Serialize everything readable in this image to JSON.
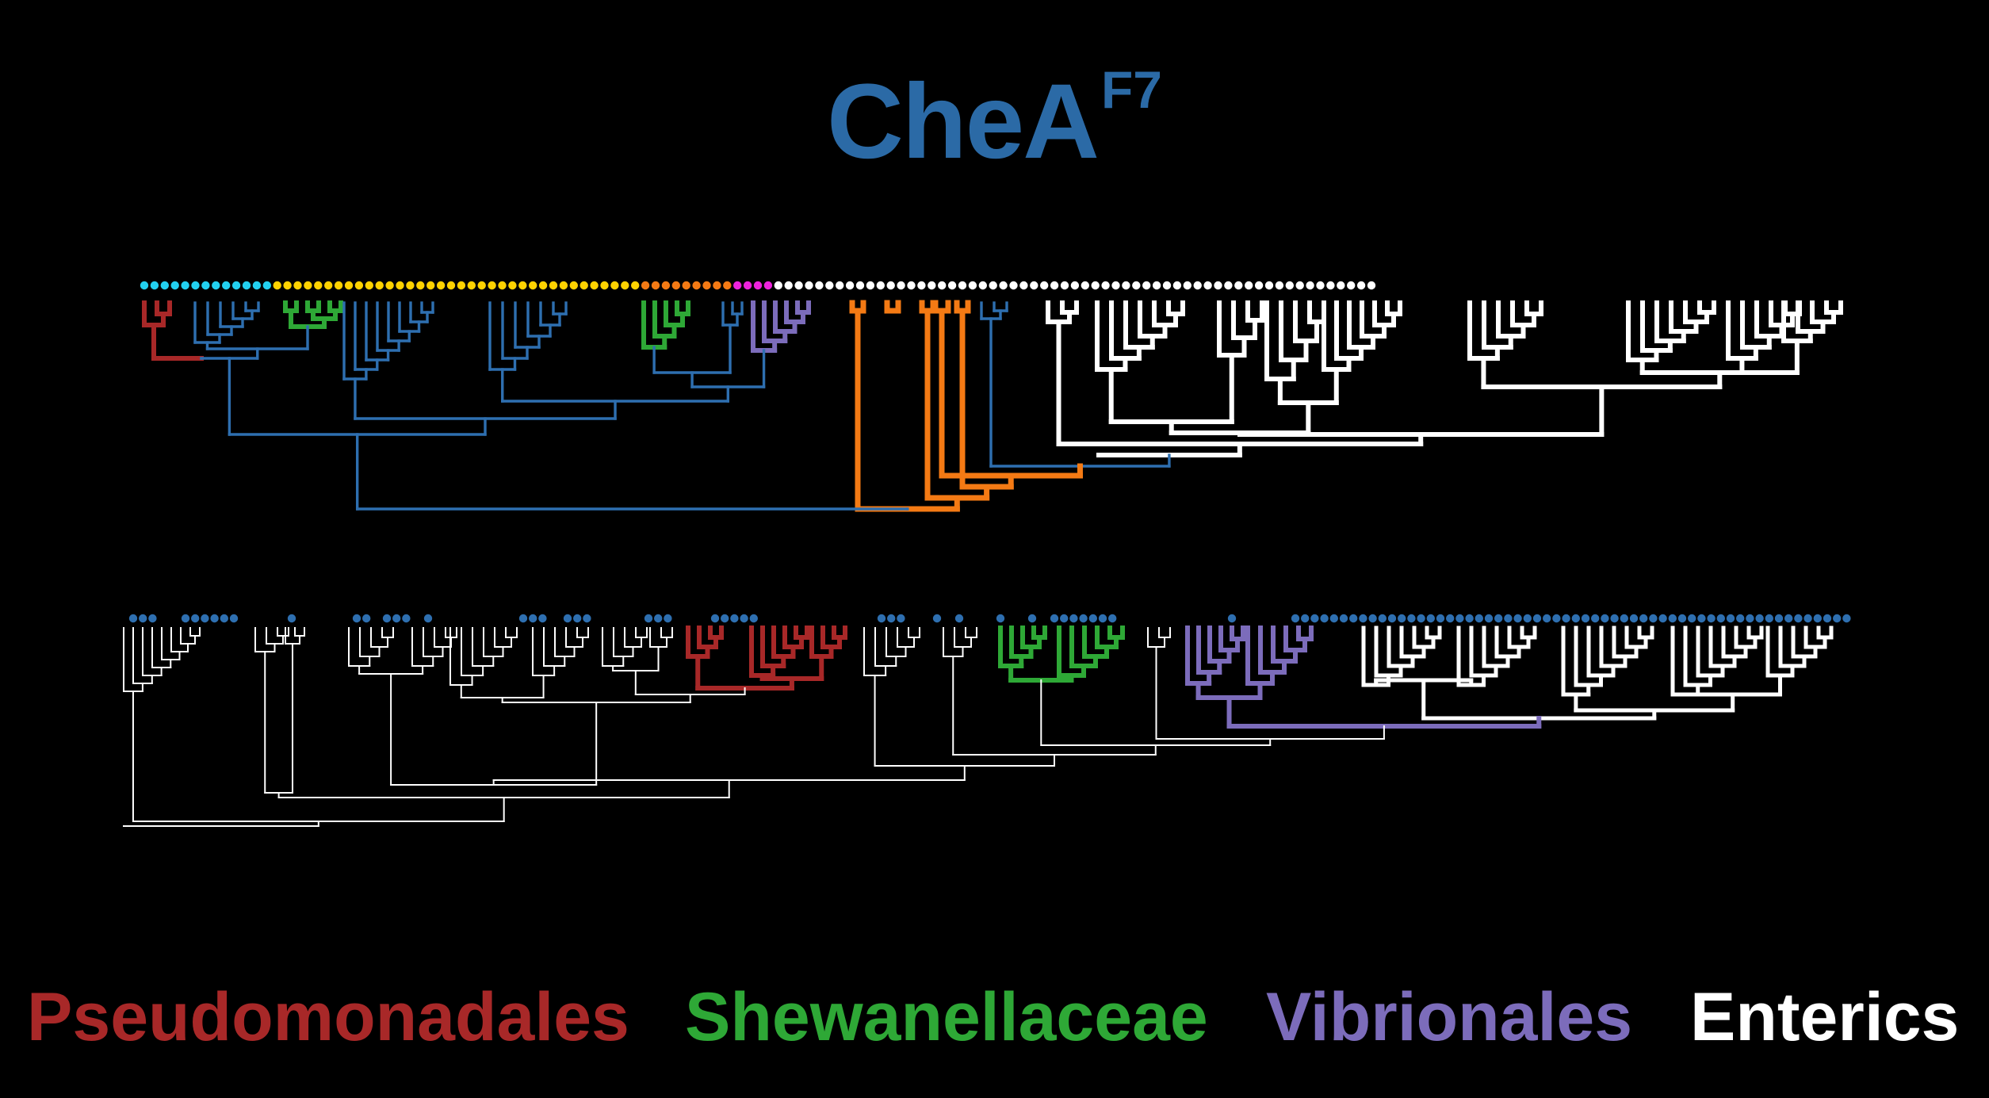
{
  "title": {
    "main": "CheA",
    "superscript": "F7"
  },
  "colors": {
    "background": "#000000",
    "title": "#2b6aa6",
    "other": "#2e6fb0",
    "pseudomonadales": "#a82828",
    "shewanellaceae": "#2ea836",
    "vibrionales": "#7c6cbb",
    "enterics": "#ffffff",
    "orange": "#f47a14",
    "cyan_tip": "#22d0f0",
    "yellow_tip": "#ffd200",
    "magenta_tip": "#ee22dd",
    "blue_tip": "#2e6fb0"
  },
  "trees": [
    {
      "name": "upper-tree",
      "tip_marker_groups": [
        {
          "color": "cyan_tip",
          "count": 13
        },
        {
          "color": "yellow_tip",
          "count": 36
        },
        {
          "color": "orange",
          "count": 9
        },
        {
          "color": "magenta_tip",
          "count": 4
        },
        {
          "color": "enterics",
          "count": 59
        }
      ]
    },
    {
      "name": "lower-tree",
      "tip_marker_color": "blue_tip"
    }
  ],
  "legend": [
    {
      "label": "Pseudomonadales",
      "color": "pseudomonadales"
    },
    {
      "label": "Shewanellaceae",
      "color": "shewanellaceae"
    },
    {
      "label": "Vibrionales",
      "color": "vibrionales"
    },
    {
      "label": "Enterics",
      "color": "enterics"
    }
  ]
}
